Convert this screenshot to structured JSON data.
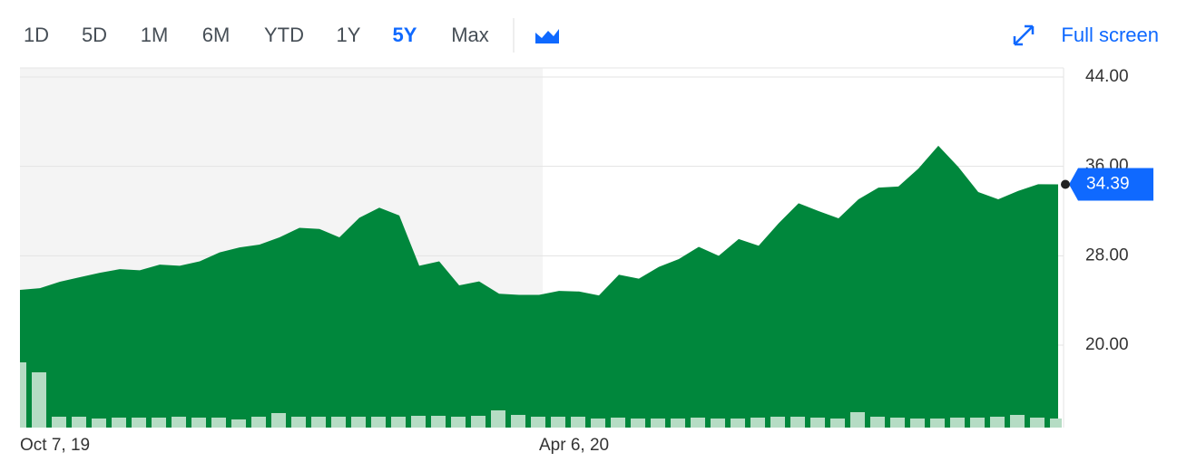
{
  "controls": {
    "ranges": [
      "1D",
      "5D",
      "1M",
      "6M",
      "YTD",
      "1Y",
      "5Y",
      "Max"
    ],
    "selected": "5Y",
    "full_screen": "Full screen"
  },
  "chart_data": {
    "type": "area",
    "categories": [
      "Oct 7, 19",
      null,
      null,
      null,
      null,
      null,
      null,
      null,
      null,
      null,
      null,
      null,
      null,
      null,
      null,
      null,
      null,
      null,
      null,
      null,
      null,
      null,
      null,
      null,
      null,
      null,
      "Apr 6, 20",
      null,
      null,
      null,
      null,
      null,
      null,
      null,
      null,
      null,
      null,
      null,
      null,
      null,
      null,
      null,
      null,
      null,
      null,
      null,
      null,
      null,
      null,
      null,
      null,
      null,
      null
    ],
    "series": [
      {
        "color": "#00873c",
        "values": [
          24.94,
          25.1,
          25.67,
          26.08,
          26.48,
          26.8,
          26.7,
          27.2,
          27.1,
          27.5,
          28.3,
          28.75,
          29.0,
          29.65,
          30.5,
          30.4,
          29.65,
          31.4,
          32.3,
          31.6,
          27.1,
          27.5,
          25.35,
          25.7,
          24.6,
          24.5,
          24.5,
          24.85,
          24.8,
          24.45,
          26.3,
          25.95,
          27.0,
          27.7,
          28.8,
          28.0,
          29.5,
          28.9,
          30.9,
          32.7,
          32.0,
          31.35,
          33.05,
          34.1,
          34.2,
          35.8,
          37.85,
          35.95,
          33.7,
          33.05,
          33.8,
          34.4,
          34.39
        ]
      }
    ],
    "volume": {
      "color": "#b5dcc4",
      "values": [
        72,
        61,
        12,
        12,
        10,
        11,
        11,
        11,
        12,
        11,
        11,
        9,
        12,
        16,
        12,
        12,
        12,
        12,
        12,
        12,
        13,
        13,
        12,
        13,
        19,
        14,
        12,
        12,
        12,
        10,
        11,
        10,
        10,
        10,
        11,
        10,
        10,
        11,
        12,
        12,
        11,
        10,
        17,
        12,
        11,
        10,
        10,
        11,
        11,
        12,
        14,
        11,
        10
      ]
    },
    "ylim": [
      12.62,
      44.81
    ],
    "yticks": [
      {
        "value": 20,
        "label": "20.00"
      },
      {
        "value": 28,
        "label": "28.00"
      },
      {
        "value": 36,
        "label": "36.00"
      },
      {
        "value": 44,
        "label": "44.00"
      }
    ],
    "grid": true
  }
}
